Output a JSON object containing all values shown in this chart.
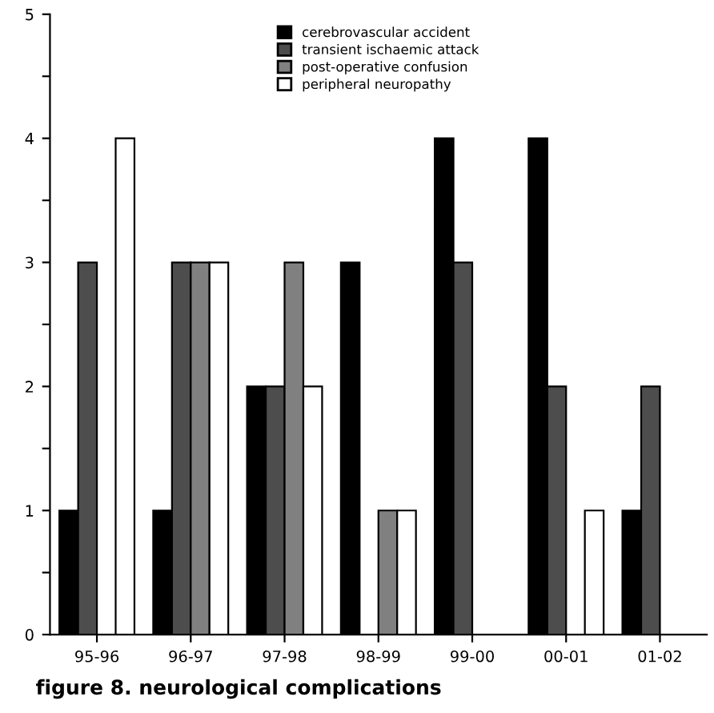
{
  "chart_data": {
    "type": "bar",
    "title": "figure 8. neurological complications",
    "categories": [
      "95-96",
      "96-97",
      "97-98",
      "98-99",
      "99-00",
      "00-01",
      "01-02"
    ],
    "series": [
      {
        "name": "cerebrovascular accident",
        "color": "#000000",
        "values": [
          1,
          1,
          2,
          3,
          4,
          4,
          1
        ]
      },
      {
        "name": "transient ischaemic attack",
        "color": "#4d4d4d",
        "values": [
          3,
          3,
          2,
          0,
          3,
          2,
          2
        ]
      },
      {
        "name": "post-operative confusion",
        "color": "#808080",
        "values": [
          0,
          3,
          3,
          1,
          0,
          0,
          0
        ]
      },
      {
        "name": "peripheral neuropathy",
        "color": "#ffffff",
        "values": [
          4,
          3,
          2,
          1,
          0,
          1,
          0
        ]
      }
    ],
    "ylim": [
      0,
      5
    ],
    "yticks": [
      0,
      {
        "value": 0.5,
        "label": null
      },
      1,
      {
        "value": 1.5,
        "label": null
      },
      2,
      {
        "value": 2.5,
        "label": null
      },
      3,
      {
        "value": 3.5,
        "label": null
      },
      4,
      {
        "value": 4.5,
        "label": null
      },
      5
    ],
    "grid": false,
    "legend": "top"
  }
}
